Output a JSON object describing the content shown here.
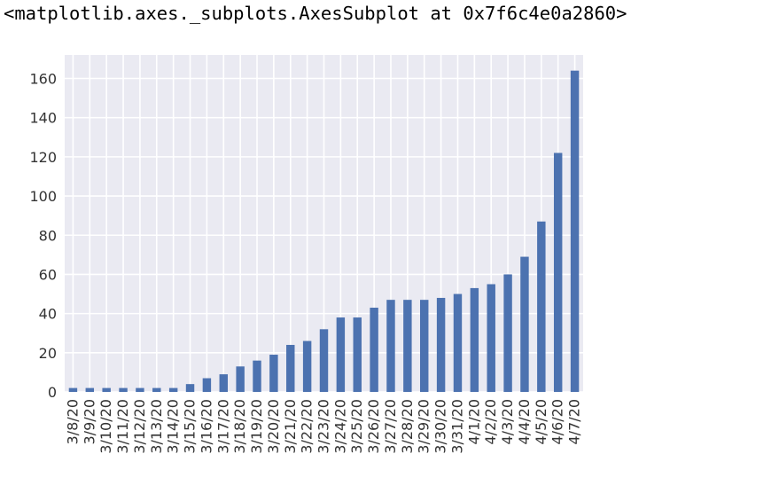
{
  "output_repr": "<matplotlib.axes._subplots.AxesSubplot at 0x7f6c4e0a2860>",
  "colors": {
    "axes_bg": "#eaeaf2",
    "grid": "#ffffff",
    "bar": "#4c72b0",
    "tick_text": "#333333"
  },
  "chart_data": {
    "type": "bar",
    "title": "",
    "xlabel": "",
    "ylabel": "",
    "grid": true,
    "categories": [
      "3/8/20",
      "3/9/20",
      "3/10/20",
      "3/11/20",
      "3/12/20",
      "3/13/20",
      "3/14/20",
      "3/15/20",
      "3/16/20",
      "3/17/20",
      "3/18/20",
      "3/19/20",
      "3/20/20",
      "3/21/20",
      "3/22/20",
      "3/23/20",
      "3/24/20",
      "3/25/20",
      "3/26/20",
      "3/27/20",
      "3/28/20",
      "3/29/20",
      "3/30/20",
      "3/31/20",
      "4/1/20",
      "4/2/20",
      "4/3/20",
      "4/4/20",
      "4/5/20",
      "4/6/20",
      "4/7/20"
    ],
    "values": [
      2,
      2,
      2,
      2,
      2,
      2,
      2,
      4,
      7,
      9,
      13,
      16,
      19,
      24,
      26,
      32,
      38,
      38,
      43,
      47,
      47,
      47,
      48,
      50,
      53,
      55,
      60,
      69,
      87,
      122,
      164
    ],
    "ylim": [
      0,
      172
    ],
    "yticks": [
      0,
      20,
      40,
      60,
      80,
      100,
      120,
      140,
      160
    ]
  }
}
